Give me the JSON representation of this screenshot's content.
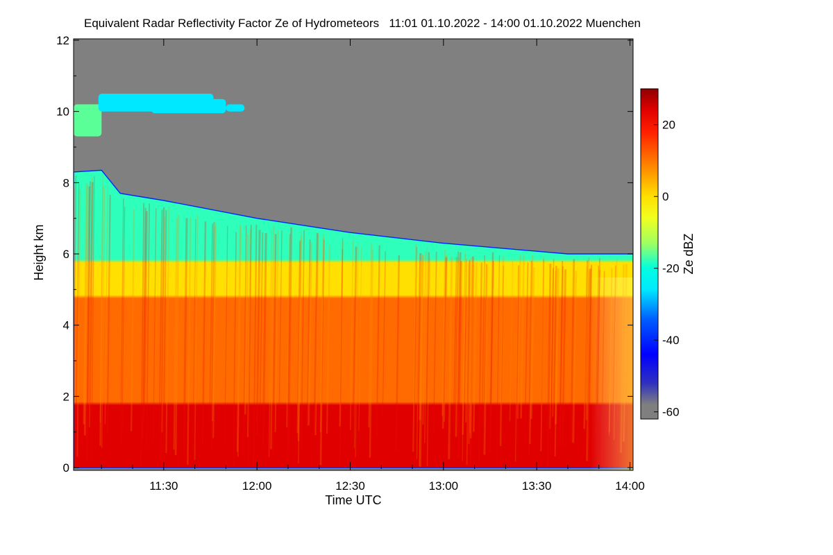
{
  "chart_data": {
    "type": "heatmap",
    "title": "Equivalent Radar Reflectivity Factor Ze of Hydrometeors   11:01 01.10.2022 - 14:00 01.10.2022 Muenchen",
    "xlabel": "Time UTC",
    "ylabel": "Height km",
    "x_start_min": 661,
    "x_end_min": 841,
    "x_ticks": [
      {
        "value": 690,
        "label": "11:30"
      },
      {
        "value": 720,
        "label": "12:00"
      },
      {
        "value": 750,
        "label": "12:30"
      },
      {
        "value": 780,
        "label": "13:00"
      },
      {
        "value": 810,
        "label": "13:30"
      },
      {
        "value": 840,
        "label": "14:00"
      }
    ],
    "ylim": [
      0,
      12
    ],
    "y_ticks": [
      {
        "value": 0,
        "label": "0"
      },
      {
        "value": 2,
        "label": "2"
      },
      {
        "value": 4,
        "label": "4"
      },
      {
        "value": 6,
        "label": "6"
      },
      {
        "value": 8,
        "label": "8"
      },
      {
        "value": 10,
        "label": "10"
      },
      {
        "value": 12,
        "label": "12"
      }
    ],
    "colorbar": {
      "label": "Ze dBZ",
      "range": [
        -62,
        30
      ],
      "ticks": [
        {
          "value": 20,
          "label": "20"
        },
        {
          "value": 0,
          "label": "0"
        },
        {
          "value": -20,
          "label": "-20"
        },
        {
          "value": -40,
          "label": "-40"
        },
        {
          "value": -60,
          "label": "-60"
        }
      ],
      "stops": [
        {
          "value": -62,
          "color": "#7f7f7f"
        },
        {
          "value": -58,
          "color": "#7f7f7f"
        },
        {
          "value": -52,
          "color": "#3030c0"
        },
        {
          "value": -44,
          "color": "#0000ff"
        },
        {
          "value": -34,
          "color": "#0060ff"
        },
        {
          "value": -26,
          "color": "#00e8ff"
        },
        {
          "value": -20,
          "color": "#00ffe0"
        },
        {
          "value": -13,
          "color": "#a0ff60"
        },
        {
          "value": -6,
          "color": "#f0ff20"
        },
        {
          "value": 0,
          "color": "#ffe000"
        },
        {
          "value": 6,
          "color": "#ffa000"
        },
        {
          "value": 12,
          "color": "#ff6000"
        },
        {
          "value": 18,
          "color": "#ff2000"
        },
        {
          "value": 24,
          "color": "#e00000"
        },
        {
          "value": 30,
          "color": "#900000"
        }
      ]
    },
    "background_color": "#808080",
    "echo_top_km": [
      {
        "t": 661,
        "h": 8.3
      },
      {
        "t": 670,
        "h": 8.35
      },
      {
        "t": 676,
        "h": 7.7
      },
      {
        "t": 690,
        "h": 7.5
      },
      {
        "t": 720,
        "h": 7.0
      },
      {
        "t": 750,
        "h": 6.6
      },
      {
        "t": 780,
        "h": 6.3
      },
      {
        "t": 800,
        "h": 6.15
      },
      {
        "t": 820,
        "h": 6.0
      },
      {
        "t": 841,
        "h": 6.0
      }
    ],
    "cirrus_layers": [
      {
        "t0": 661,
        "t1": 670,
        "base_km": 9.3,
        "top_km": 10.2,
        "ze_dbz": -16
      },
      {
        "t0": 669,
        "t1": 706,
        "base_km": 10.0,
        "top_km": 10.5,
        "ze_dbz": -26
      },
      {
        "t0": 686,
        "t1": 710,
        "base_km": 9.95,
        "top_km": 10.35,
        "ze_dbz": -26
      },
      {
        "t0": 710,
        "t1": 716,
        "base_km": 10.0,
        "top_km": 10.2,
        "ze_dbz": -26
      }
    ],
    "layers_dbz": [
      {
        "from_km": 0.0,
        "to_km": 1.8,
        "ze_dbz": 24
      },
      {
        "from_km": 1.8,
        "to_km": 4.8,
        "ze_dbz": 11
      },
      {
        "from_km": 4.8,
        "to_km": 5.8,
        "ze_dbz": 0
      },
      {
        "from_km": 5.8,
        "to_km": "echo_top",
        "ze_dbz": -18
      }
    ]
  }
}
